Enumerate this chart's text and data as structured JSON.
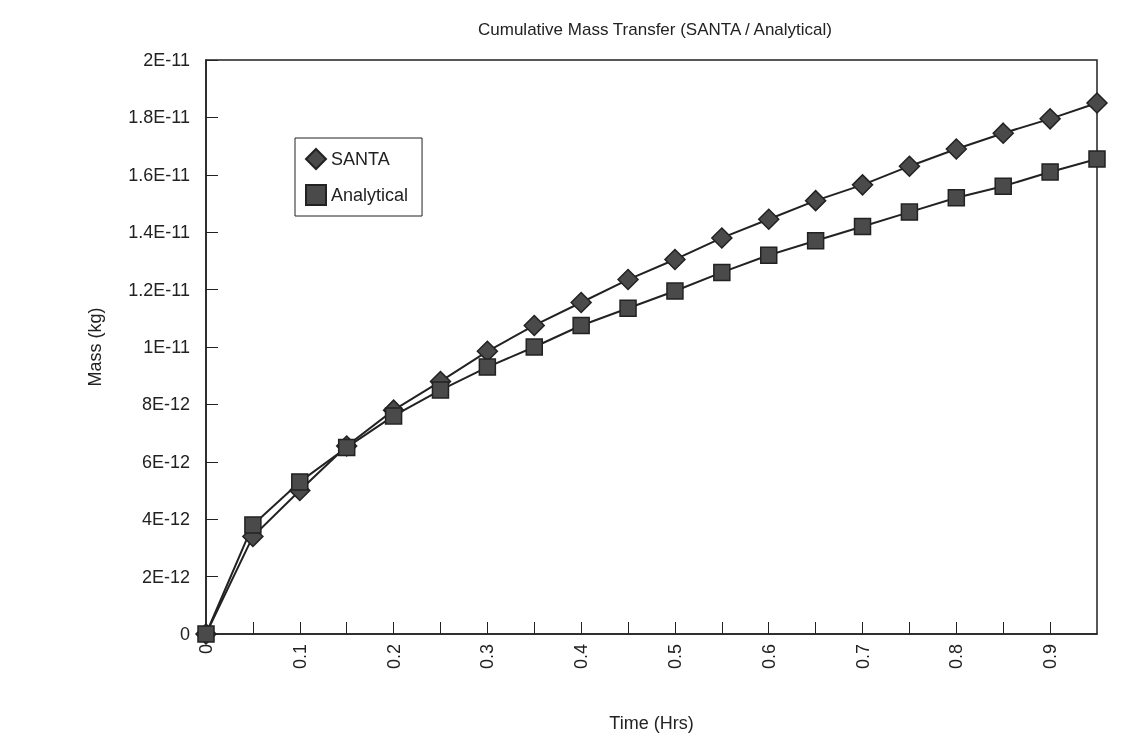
{
  "chart_data": {
    "type": "line",
    "title": "Cumulative Mass Transfer (SANTA / Analytical)",
    "xlabel": "Time (Hrs)",
    "ylabel": "Mass (kg)",
    "x": [
      0,
      0.05,
      0.1,
      0.15,
      0.2,
      0.25,
      0.3,
      0.35,
      0.4,
      0.45,
      0.5,
      0.55,
      0.6,
      0.65,
      0.7,
      0.75,
      0.8,
      0.85,
      0.9,
      0.95
    ],
    "series": [
      {
        "name": "SANTA",
        "color": "#4a4a4a",
        "marker": "diamond",
        "values": [
          0,
          3.4e-12,
          5e-12,
          6.55e-12,
          7.8e-12,
          8.8e-12,
          9.85e-12,
          1.075e-11,
          1.155e-11,
          1.235e-11,
          1.305e-11,
          1.38e-11,
          1.445e-11,
          1.51e-11,
          1.565e-11,
          1.63e-11,
          1.69e-11,
          1.745e-11,
          1.795e-11,
          1.85e-11
        ]
      },
      {
        "name": "Analytical",
        "color": "#4a4a4a",
        "marker": "square",
        "values": [
          0,
          3.8e-12,
          5.3e-12,
          6.5e-12,
          7.6e-12,
          8.5e-12,
          9.3e-12,
          1e-11,
          1.075e-11,
          1.135e-11,
          1.195e-11,
          1.26e-11,
          1.32e-11,
          1.37e-11,
          1.42e-11,
          1.47e-11,
          1.52e-11,
          1.56e-11,
          1.61e-11,
          1.655e-11
        ]
      }
    ],
    "xlim": [
      0,
      0.95
    ],
    "xticks": [
      0,
      {
        "value": 0.05,
        "label": null
      },
      0.1,
      {
        "value": 0.15,
        "label": null
      },
      0.2,
      {
        "value": 0.25,
        "label": null
      },
      0.3,
      {
        "value": 0.35,
        "label": null
      },
      0.4,
      {
        "value": 0.45,
        "label": null
      },
      0.5,
      {
        "value": 0.55,
        "label": null
      },
      0.6,
      {
        "value": 0.65,
        "label": null
      },
      0.7,
      {
        "value": 0.75,
        "label": null
      },
      0.8,
      {
        "value": 0.85,
        "label": null
      },
      0.9
    ],
    "ylim": [
      0,
      2e-11
    ],
    "yticks": [
      0,
      {
        "value": 2e-12,
        "label": "2E-12"
      },
      {
        "value": 4e-12,
        "label": "4E-12"
      },
      {
        "value": 6e-12,
        "label": "6E-12"
      },
      {
        "value": 8e-12,
        "label": "8E-12"
      },
      {
        "value": 1e-11,
        "label": "1E-11"
      },
      {
        "value": 1.2e-11,
        "label": "1.2E-11"
      },
      {
        "value": 1.4e-11,
        "label": "1.4E-11"
      },
      {
        "value": 1.6e-11,
        "label": "1.6E-11"
      },
      {
        "value": 1.8e-11,
        "label": "1.8E-11"
      },
      {
        "value": 2e-11,
        "label": "2E-11"
      }
    ],
    "grid": false,
    "legend": "top left",
    "line_style": "solid"
  }
}
